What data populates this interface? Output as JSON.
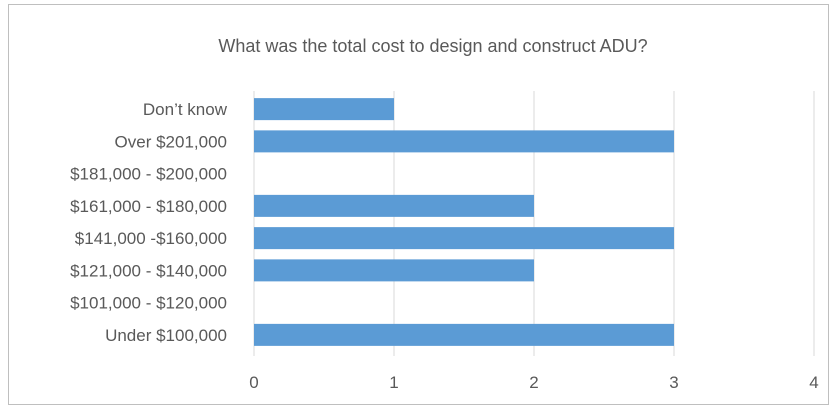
{
  "chart_data": {
    "type": "bar",
    "orientation": "horizontal",
    "title": "What was the total cost to design and construct ADU?",
    "xlabel": "",
    "ylabel": "",
    "categories": [
      "Under $100,000",
      "$101,000 - $120,000",
      "$121,000 - $140,000",
      "$141,000 -$160,000",
      "$161,000 - $180,000",
      "$181,000 - $200,000",
      "Over $201,000",
      "Don’t know"
    ],
    "values": [
      3,
      0,
      2,
      3,
      2,
      0,
      3,
      1
    ],
    "xlim": [
      0,
      4
    ],
    "x_ticks": [
      0,
      1,
      2,
      3,
      4
    ],
    "grid": "vertical",
    "legend": "none",
    "colors": {
      "bar": "#5b9bd5",
      "grid": "#d9d9d9",
      "text": "#595959",
      "border": "#bfbfbf"
    }
  }
}
